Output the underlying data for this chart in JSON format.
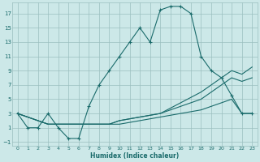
{
  "bg_color": "#cce8e8",
  "grid_color": "#9bbfbf",
  "line_color": "#1a6b6b",
  "xlabel": "Humidex (Indice chaleur)",
  "xlim": [
    -0.5,
    23.5
  ],
  "ylim": [
    -1.5,
    18.5
  ],
  "yticks": [
    -1,
    1,
    3,
    5,
    7,
    9,
    11,
    13,
    15,
    17
  ],
  "xticks": [
    0,
    1,
    2,
    3,
    4,
    5,
    6,
    7,
    8,
    9,
    10,
    11,
    12,
    13,
    14,
    15,
    16,
    17,
    18,
    19,
    20,
    21,
    22,
    23
  ],
  "main_x": [
    0,
    1,
    2,
    3,
    4,
    5,
    6,
    7,
    8,
    9,
    10,
    11,
    12,
    13,
    14,
    15,
    16,
    17,
    18,
    19,
    20,
    21,
    22,
    23
  ],
  "main_y": [
    3,
    1,
    1,
    3,
    1,
    -0.5,
    -0.5,
    4,
    7,
    9,
    11,
    13,
    15,
    13,
    17.5,
    18,
    18,
    17,
    11,
    9,
    8,
    5.5,
    3,
    3
  ],
  "line1_x": [
    0,
    3,
    6,
    9,
    10,
    12,
    14,
    16,
    18,
    19,
    20,
    21,
    22,
    23
  ],
  "line1_y": [
    3,
    1.5,
    1.5,
    1.5,
    2,
    2.5,
    3,
    4.5,
    6,
    7,
    8,
    9,
    8.5,
    9.5
  ],
  "line2_x": [
    0,
    3,
    6,
    9,
    10,
    12,
    14,
    16,
    18,
    19,
    20,
    21,
    22,
    23
  ],
  "line2_y": [
    3,
    1.5,
    1.5,
    1.5,
    2,
    2.5,
    3,
    4,
    5,
    6,
    7,
    8,
    7.5,
    8
  ],
  "line3_x": [
    0,
    3,
    6,
    9,
    10,
    12,
    14,
    16,
    18,
    19,
    20,
    21,
    22,
    23
  ],
  "line3_y": [
    3,
    1.5,
    1.5,
    1.5,
    1.5,
    2,
    2.5,
    3,
    3.5,
    4,
    4.5,
    5,
    3,
    3
  ]
}
